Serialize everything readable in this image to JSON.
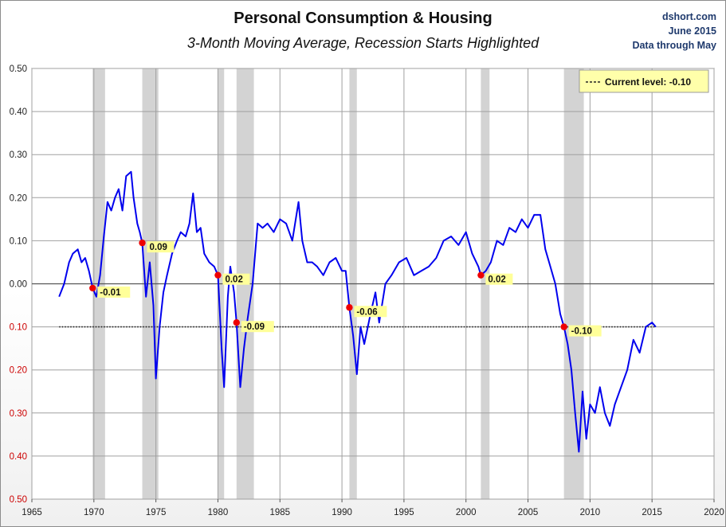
{
  "chart_data": {
    "type": "line",
    "title": "Personal Consumption & Housing",
    "subtitle": "3-Month Moving Average, Recession Starts Highlighted",
    "source": "dshort.com",
    "date": "June 2015",
    "data_note": "Data through May",
    "xlim": [
      1965,
      2020
    ],
    "ylim": [
      -0.5,
      0.5
    ],
    "x_ticks": [
      1965,
      1970,
      1975,
      1980,
      1985,
      1990,
      1995,
      2000,
      2005,
      2010,
      2015,
      2020
    ],
    "x_tick_labels": [
      "1965",
      "1970",
      "1975",
      "1980",
      "1985",
      "1990",
      "1995",
      "2000",
      "2005",
      "2010",
      "2015",
      "2020"
    ],
    "y_ticks": [
      0.5,
      0.4,
      0.3,
      0.2,
      0.1,
      0.0,
      -0.1,
      -0.2,
      -0.3,
      -0.4,
      -0.5
    ],
    "y_tick_labels": [
      "0.50",
      "0.40",
      "0.30",
      "0.20",
      "0.10",
      "0.00",
      "0.10",
      "0.20",
      "0.30",
      "0.40",
      "0.50"
    ],
    "grid": true,
    "colors": {
      "line": "#0000ee",
      "recession": "#d3d3d3",
      "marker": "#ee0000",
      "negative_tick": "#cc0000",
      "label_bg": "#ffff99",
      "current_line": "#222222"
    },
    "current_level": {
      "label": "Current level:",
      "value": -0.1,
      "value_label": "-0.10",
      "legend_position": "top-right"
    },
    "recessions": [
      {
        "start": 1969.9,
        "end": 1970.9
      },
      {
        "start": 1973.9,
        "end": 1975.2
      },
      {
        "start": 1980.0,
        "end": 1980.5
      },
      {
        "start": 1981.5,
        "end": 1982.9
      },
      {
        "start": 1990.6,
        "end": 1991.2
      },
      {
        "start": 2001.2,
        "end": 2001.9
      },
      {
        "start": 2007.9,
        "end": 2009.5
      }
    ],
    "recession_starts": [
      {
        "x": 1969.9,
        "y": -0.01,
        "label": "-0.01"
      },
      {
        "x": 1973.9,
        "y": 0.095,
        "label": "0.09"
      },
      {
        "x": 1980.0,
        "y": 0.02,
        "label": "0.02"
      },
      {
        "x": 1981.5,
        "y": -0.09,
        "label": "-0.09"
      },
      {
        "x": 1990.6,
        "y": -0.055,
        "label": "-0.06"
      },
      {
        "x": 2001.2,
        "y": 0.02,
        "label": "0.02"
      },
      {
        "x": 2007.9,
        "y": -0.1,
        "label": "-0.10"
      }
    ],
    "series": [
      {
        "x": [
          1967.2,
          1967.6,
          1968.0,
          1968.3,
          1968.7,
          1969.0,
          1969.3,
          1969.6,
          1969.9,
          1970.2,
          1970.5,
          1970.8,
          1971.1,
          1971.4,
          1971.7,
          1972.0,
          1972.3,
          1972.6,
          1973.0,
          1973.2,
          1973.5,
          1973.7,
          1973.9,
          1974.2,
          1974.5,
          1974.8,
          1975.0,
          1975.3,
          1975.6,
          1975.9,
          1976.3,
          1976.7,
          1977.0,
          1977.4,
          1977.7,
          1978.0,
          1978.3,
          1978.6,
          1978.9,
          1979.3,
          1979.7,
          1980.0,
          1980.3,
          1980.5,
          1980.8,
          1981.0,
          1981.3,
          1981.5,
          1981.8,
          1982.1,
          1982.4,
          1982.8,
          1983.2,
          1983.6,
          1984.0,
          1984.5,
          1985.0,
          1985.5,
          1986.0,
          1986.5,
          1986.8,
          1987.2,
          1987.6,
          1988.0,
          1988.5,
          1989.0,
          1989.5,
          1990.0,
          1990.3,
          1990.6,
          1990.9,
          1991.2,
          1991.5,
          1991.8,
          1992.3,
          1992.7,
          1993.0,
          1993.5,
          1994.0,
          1994.6,
          1995.2,
          1995.8,
          1996.4,
          1997.0,
          1997.6,
          1998.2,
          1998.8,
          1999.4,
          2000.0,
          2000.5,
          2001.0,
          2001.2,
          2001.6,
          2002.0,
          2002.5,
          2003.0,
          2003.5,
          2004.0,
          2004.5,
          2005.0,
          2005.5,
          2006.0,
          2006.4,
          2006.8,
          2007.2,
          2007.6,
          2007.9,
          2008.2,
          2008.5,
          2008.8,
          2009.1,
          2009.4,
          2009.7,
          2010.0,
          2010.4,
          2010.8,
          2011.2,
          2011.6,
          2012.0,
          2012.5,
          2013.0,
          2013.5,
          2014.0,
          2014.5,
          2015.0,
          2015.3
        ],
        "y": [
          -0.03,
          0.0,
          0.05,
          0.07,
          0.08,
          0.05,
          0.06,
          0.03,
          -0.01,
          -0.03,
          0.02,
          0.11,
          0.19,
          0.17,
          0.2,
          0.22,
          0.17,
          0.25,
          0.26,
          0.2,
          0.14,
          0.12,
          0.095,
          -0.03,
          0.05,
          -0.05,
          -0.22,
          -0.1,
          -0.02,
          0.02,
          0.07,
          0.1,
          0.12,
          0.11,
          0.14,
          0.21,
          0.12,
          0.13,
          0.07,
          0.05,
          0.04,
          0.02,
          -0.15,
          -0.24,
          -0.03,
          0.04,
          -0.02,
          -0.09,
          -0.24,
          -0.15,
          -0.08,
          0.0,
          0.14,
          0.13,
          0.14,
          0.12,
          0.15,
          0.14,
          0.1,
          0.19,
          0.1,
          0.05,
          0.05,
          0.04,
          0.02,
          0.05,
          0.06,
          0.03,
          0.03,
          -0.055,
          -0.12,
          -0.21,
          -0.1,
          -0.14,
          -0.07,
          -0.02,
          -0.09,
          0.0,
          0.02,
          0.05,
          0.06,
          0.02,
          0.03,
          0.04,
          0.06,
          0.1,
          0.11,
          0.09,
          0.12,
          0.07,
          0.04,
          0.02,
          0.03,
          0.05,
          0.1,
          0.09,
          0.13,
          0.12,
          0.15,
          0.13,
          0.16,
          0.16,
          0.08,
          0.04,
          0.0,
          -0.07,
          -0.1,
          -0.14,
          -0.2,
          -0.3,
          -0.39,
          -0.25,
          -0.36,
          -0.28,
          -0.3,
          -0.24,
          -0.3,
          -0.33,
          -0.28,
          -0.24,
          -0.2,
          -0.13,
          -0.16,
          -0.1,
          -0.09,
          -0.1
        ]
      }
    ]
  }
}
